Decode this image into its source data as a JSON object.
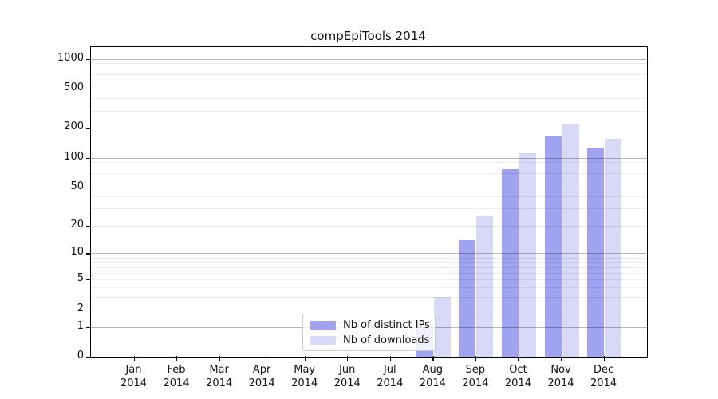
{
  "chart_data": {
    "type": "bar",
    "title": "compEpiTools 2014",
    "months": [
      "Jan",
      "Feb",
      "Mar",
      "Apr",
      "May",
      "Jun",
      "Jul",
      "Aug",
      "Sep",
      "Oct",
      "Nov",
      "Dec"
    ],
    "year": "2014",
    "series": [
      {
        "name": "Nb of distinct IPs",
        "color": "#a2a2f2",
        "values": [
          0,
          0,
          0,
          0,
          0,
          0,
          0,
          1,
          14,
          77,
          164,
          125
        ]
      },
      {
        "name": "Nb of downloads",
        "color": "#d8d8f8",
        "values": [
          0,
          0,
          0,
          0,
          0,
          0,
          0,
          3,
          25,
          111,
          218,
          155
        ]
      }
    ],
    "yscale": "log1p",
    "yticks": [
      0,
      1,
      2,
      5,
      10,
      20,
      50,
      100,
      200,
      500,
      1000
    ],
    "minor_gridlines": [
      3,
      4,
      6,
      7,
      8,
      9,
      30,
      40,
      60,
      70,
      80,
      90,
      300,
      400,
      600,
      700,
      800,
      900
    ],
    "decade_gridlines": [
      1,
      10,
      100,
      1000
    ],
    "ylim": [
      0,
      1320
    ],
    "grid": "on",
    "legend_position": "lower center"
  }
}
